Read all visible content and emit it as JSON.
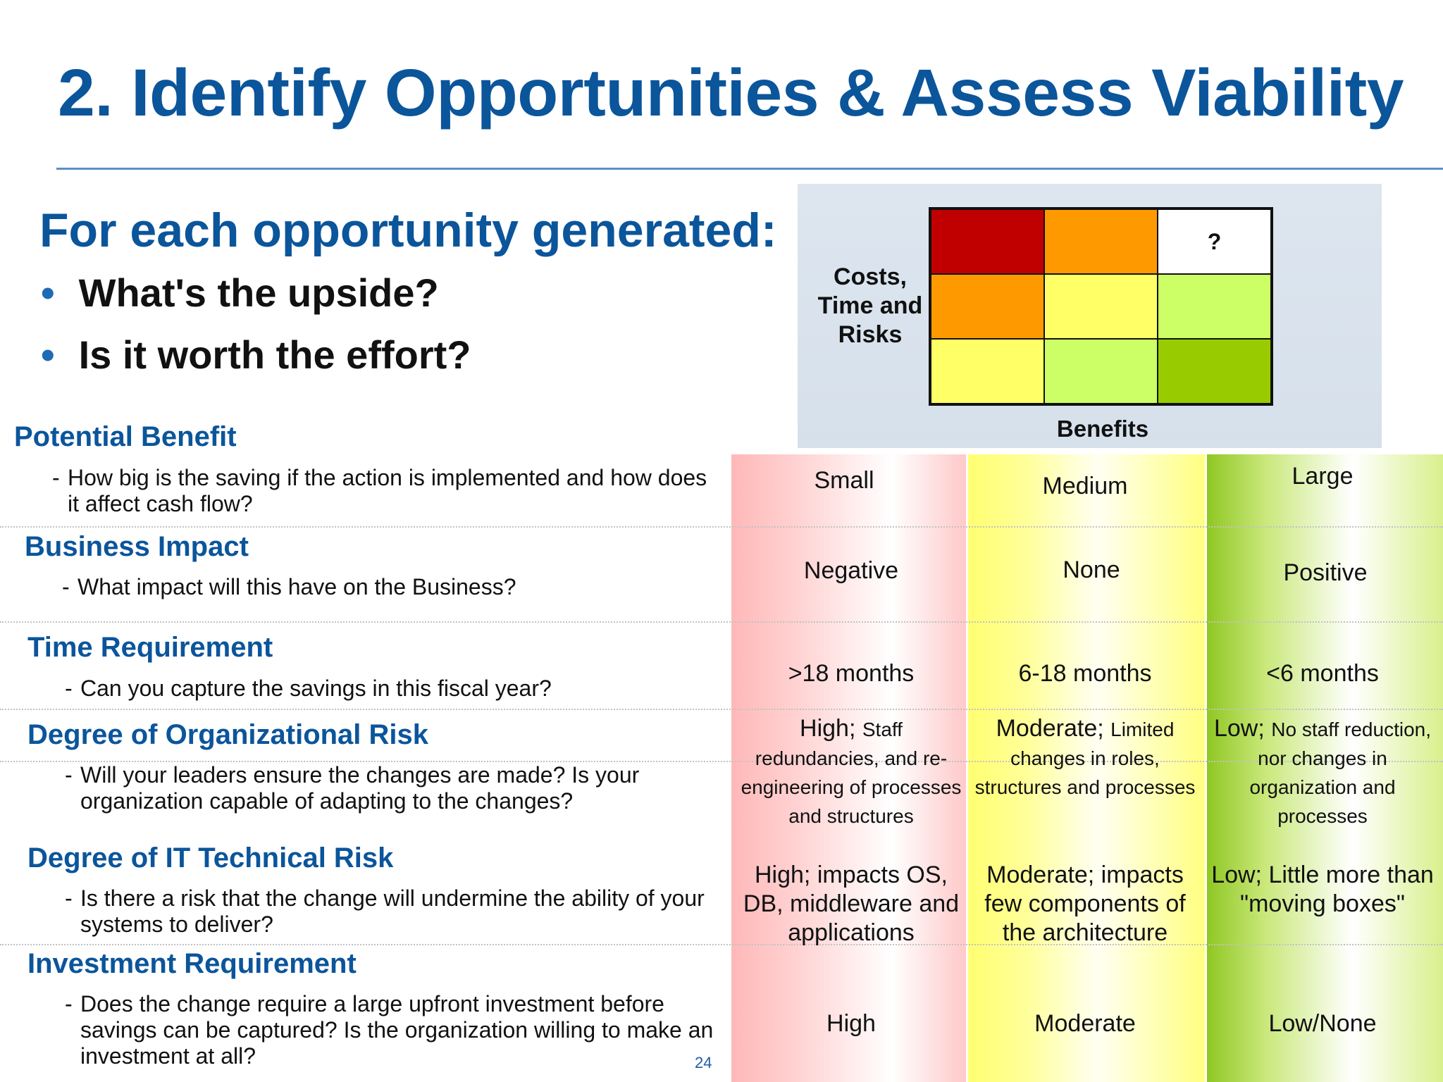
{
  "slide": {
    "title": "2. Identify Opportunities & Assess Viability",
    "subtitle": "For each opportunity generated:",
    "bullets": [
      "What's the upside?",
      "Is it worth the effort?"
    ],
    "page_number": "24"
  },
  "matrix": {
    "y_label_lines": [
      "Costs,",
      "Time and",
      "Risks"
    ],
    "x_label": "Benefits",
    "cells": [
      {
        "color": "#c00000",
        "text": ""
      },
      {
        "color": "#ff9900",
        "text": ""
      },
      {
        "color": "#ffffff",
        "text": "?"
      },
      {
        "color": "#ff9900",
        "text": ""
      },
      {
        "color": "#ffff66",
        "text": ""
      },
      {
        "color": "#ccff66",
        "text": ""
      },
      {
        "color": "#ffff66",
        "text": ""
      },
      {
        "color": "#ccff66",
        "text": ""
      },
      {
        "color": "#99cc00",
        "text": ""
      }
    ]
  },
  "criteria": [
    {
      "title": "Potential Benefit",
      "desc": "How big is the saving if the action is implemented and how does it affect cash flow?"
    },
    {
      "title": "Business Impact",
      "desc": "What impact will this have on the Business?"
    },
    {
      "title": "Time Requirement",
      "desc": "Can you capture the savings in this fiscal year?"
    },
    {
      "title": "Degree of Organizational Risk",
      "desc": "Will your leaders ensure the changes are made? Is your organization capable of adapting to the changes?"
    },
    {
      "title": "Degree of IT Technical Risk",
      "desc": "Is there a risk that the change will undermine the ability of your systems to deliver?"
    },
    {
      "title": "Investment Requirement",
      "desc": "Does the change require a large upfront investment before savings can be captured? Is the organization willing to make an investment at all?"
    }
  ],
  "scale": {
    "colors": {
      "small": "#ffb8b8",
      "medium": "#ffff70",
      "large": "#8ec621"
    },
    "small": {
      "benefit": "Small",
      "impact": "Negative",
      "time": ">18 months",
      "org_main": "High;",
      "org_detail": "Staff redundancies, and re-engineering of processes and structures",
      "it": "High; impacts OS, DB, middleware and applications",
      "investment": "High"
    },
    "medium": {
      "benefit": "Medium",
      "impact": "None",
      "time": "6-18 months",
      "org_main": "Moderate;",
      "org_detail": "Limited changes in roles, structures and processes",
      "it": "Moderate; impacts few components of the architecture",
      "investment": "Moderate"
    },
    "large": {
      "benefit": "Large",
      "impact": "Positive",
      "time": "<6 months",
      "org_main": "Low;",
      "org_detail": "No staff reduction, nor changes in organization and processes",
      "it": "Low; Little more than \"moving boxes\"",
      "investment": "Low/None"
    }
  }
}
